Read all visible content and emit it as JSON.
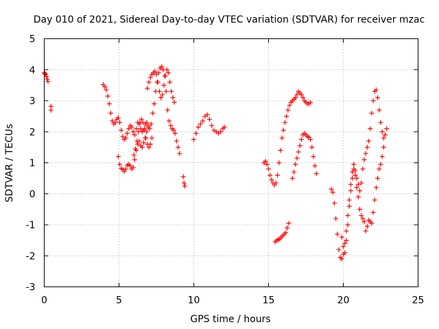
{
  "chart_data": {
    "type": "scatter",
    "title": "Day 010 of 2021, Sidereal Day-to-day VTEC variation (SDTVAR) for receiver mzac",
    "xlabel": "GPS time / hours",
    "ylabel": "SDTVAR / TECUs",
    "xlim": [
      0,
      25
    ],
    "ylim": [
      -3,
      5
    ],
    "xticks": [
      0,
      5,
      10,
      15,
      20,
      25
    ],
    "xtick_labels": [
      "0",
      "5",
      "10",
      "15",
      "20",
      "25"
    ],
    "yticks": [
      -3,
      -2,
      -1,
      0,
      1,
      2,
      3,
      4,
      5
    ],
    "ytick_labels": [
      "-3",
      "-2",
      "-1",
      "0",
      "1",
      "2",
      "3",
      "4",
      "5"
    ],
    "grid": true,
    "marker": "plus",
    "color": "#ff0000",
    "series": [
      {
        "x": [
          0.0,
          0.05,
          0.1,
          0.15,
          0.2,
          0.25
        ],
        "y": [
          3.9,
          3.88,
          3.85,
          3.78,
          3.7,
          3.62
        ]
      },
      {
        "x": [
          0.45,
          0.45
        ],
        "y": [
          2.82,
          2.7
        ]
      },
      {
        "x": [
          3.95,
          4.05,
          4.15,
          4.25,
          4.35,
          4.45,
          4.55,
          4.65,
          4.75,
          4.85,
          4.95,
          5.05,
          5.15,
          5.25,
          5.35,
          5.45,
          5.55,
          5.65,
          5.75,
          5.85,
          5.95,
          6.05,
          6.15,
          6.25,
          6.35,
          6.45,
          6.55,
          6.65,
          6.75,
          6.85,
          6.95,
          7.05,
          7.15,
          7.25,
          7.35,
          7.45,
          7.55,
          7.65,
          7.75,
          7.85,
          7.95,
          8.05,
          8.15,
          8.25,
          8.35,
          8.45,
          8.55,
          8.65,
          8.75,
          8.85,
          8.95,
          9.05
        ],
        "y": [
          3.52,
          3.45,
          3.35,
          3.15,
          2.9,
          2.6,
          2.35,
          2.25,
          2.3,
          2.4,
          2.45,
          2.3,
          2.05,
          1.85,
          1.75,
          1.8,
          1.95,
          2.1,
          2.2,
          2.15,
          2.0,
          1.9,
          2.1,
          2.3,
          2.25,
          2.1,
          2.0,
          2.05,
          2.25,
          2.3,
          2.15,
          2.1,
          2.25,
          2.6,
          2.9,
          3.3,
          3.6,
          3.9,
          4.05,
          4.1,
          4.0,
          3.8,
          3.3,
          2.7,
          2.35,
          2.2,
          2.1,
          2.05,
          1.95,
          1.7,
          1.5,
          1.3
        ]
      },
      {
        "x": [
          4.95,
          5.05,
          5.15,
          5.25,
          5.35,
          5.45,
          5.55,
          5.65,
          5.75,
          5.85,
          5.95,
          6.05,
          6.15,
          6.25,
          6.35,
          6.45,
          6.55,
          6.65,
          6.75,
          6.85,
          6.95
        ],
        "y": [
          1.2,
          0.95,
          0.82,
          0.78,
          0.72,
          0.8,
          0.92,
          0.95,
          0.9,
          0.8,
          0.85,
          1.1,
          1.4,
          1.6,
          1.7,
          1.55,
          1.5,
          1.65,
          1.8,
          2.0,
          2.2
        ]
      },
      {
        "x": [
          6.0,
          6.1,
          6.2,
          6.3,
          6.4,
          6.5,
          6.6,
          6.7,
          6.8,
          6.9,
          7.0,
          7.1,
          7.2
        ],
        "y": [
          1.25,
          1.45,
          1.7,
          2.0,
          2.3,
          2.4,
          2.3,
          2.1,
          1.8,
          1.6,
          1.5,
          1.6,
          1.8
        ]
      },
      {
        "x": [
          6.9,
          7.0,
          7.1,
          7.2,
          7.3,
          7.4,
          7.5,
          7.6,
          7.7,
          7.8,
          7.9,
          8.0,
          8.1,
          8.2,
          8.3,
          8.4,
          8.5,
          8.6,
          8.7
        ],
        "y": [
          3.4,
          3.6,
          3.75,
          3.85,
          3.9,
          3.95,
          3.85,
          3.6,
          3.3,
          3.1,
          3.2,
          3.5,
          3.8,
          4.0,
          3.9,
          3.6,
          3.3,
          3.1,
          2.95
        ]
      },
      {
        "x": [
          9.3,
          9.35,
          9.4
        ],
        "y": [
          0.55,
          0.35,
          0.25
        ]
      },
      {
        "x": [
          10.0,
          10.15,
          10.3,
          10.45,
          10.6,
          10.75,
          10.9,
          11.05,
          11.2,
          11.35,
          11.5,
          11.65,
          11.8,
          11.95,
          12.05
        ],
        "y": [
          1.75,
          1.95,
          2.15,
          2.25,
          2.35,
          2.5,
          2.55,
          2.4,
          2.2,
          2.05,
          2.0,
          1.95,
          2.0,
          2.1,
          2.15
        ]
      },
      {
        "x": [
          14.7,
          14.8,
          14.9,
          15.0,
          15.1,
          15.2,
          15.3,
          15.4,
          15.5,
          15.6,
          15.7,
          15.8,
          15.9,
          16.0,
          16.1,
          16.2,
          16.3,
          16.4,
          16.5,
          16.6,
          16.7,
          16.8,
          16.9,
          17.0,
          17.1,
          17.2,
          17.3,
          17.4,
          17.5,
          17.6,
          17.7,
          17.8
        ],
        "y": [
          1.0,
          1.05,
          0.95,
          0.8,
          0.6,
          0.45,
          0.35,
          0.28,
          0.35,
          0.6,
          1.0,
          1.4,
          1.8,
          2.05,
          2.3,
          2.5,
          2.7,
          2.85,
          2.95,
          3.0,
          3.05,
          3.1,
          3.2,
          3.3,
          3.25,
          3.2,
          3.1,
          3.0,
          2.95,
          2.9,
          2.9,
          2.95
        ]
      },
      {
        "x": [
          15.45,
          15.55,
          15.65,
          15.75,
          15.85,
          15.95,
          16.05,
          16.15,
          16.25,
          16.35
        ],
        "y": [
          -1.55,
          -1.5,
          -1.48,
          -1.45,
          -1.4,
          -1.35,
          -1.3,
          -1.25,
          -1.1,
          -0.95
        ]
      },
      {
        "x": [
          16.6,
          16.7,
          16.8,
          16.9,
          17.0,
          17.1,
          17.2,
          17.3,
          17.4,
          17.5,
          17.6,
          17.7,
          17.8,
          17.9,
          18.0,
          18.1,
          18.2
        ],
        "y": [
          0.5,
          0.7,
          0.95,
          1.15,
          1.35,
          1.55,
          1.75,
          1.9,
          1.95,
          1.9,
          1.85,
          1.82,
          1.75,
          1.5,
          1.2,
          0.9,
          0.65
        ]
      },
      {
        "x": [
          19.2,
          19.3,
          19.4,
          19.5,
          19.6,
          19.7,
          19.8,
          19.9,
          20.0,
          20.1,
          20.2,
          20.3,
          20.4,
          20.5,
          20.6,
          20.7,
          20.8,
          20.9,
          21.0,
          21.1,
          21.2,
          21.3,
          21.4,
          21.5,
          21.6,
          21.7,
          21.8,
          21.9,
          22.0,
          22.1,
          22.2,
          22.3,
          22.4,
          22.5,
          22.6,
          22.7,
          22.8,
          22.9
        ],
        "y": [
          0.15,
          0.05,
          -0.3,
          -0.8,
          -1.3,
          -1.8,
          -2.05,
          -2.1,
          -1.95,
          -1.6,
          -1.2,
          -0.7,
          -0.2,
          0.3,
          0.7,
          0.95,
          0.75,
          0.5,
          0.3,
          0.1,
          0.35,
          0.8,
          1.1,
          1.3,
          1.5,
          1.7,
          2.1,
          2.6,
          3.0,
          3.3,
          3.35,
          3.1,
          2.7,
          2.3,
          2.0,
          1.8,
          1.9,
          2.1
        ]
      },
      {
        "x": [
          19.9,
          20.0,
          20.1,
          20.2,
          20.3,
          20.4,
          20.5,
          20.6,
          20.7,
          20.8,
          20.9,
          21.0,
          21.1,
          21.2,
          21.3,
          21.4,
          21.5,
          21.6,
          21.7,
          21.8,
          21.9,
          22.0,
          22.1,
          22.2,
          22.3,
          22.4,
          22.5,
          22.6,
          22.7
        ],
        "y": [
          -1.4,
          -1.7,
          -1.9,
          -1.5,
          -1.0,
          -0.4,
          0.1,
          0.5,
          0.8,
          0.6,
          0.2,
          -0.1,
          -0.5,
          -0.7,
          -0.8,
          -0.9,
          -1.2,
          -1.05,
          -0.85,
          -0.9,
          -0.95,
          -0.6,
          -0.2,
          0.2,
          0.5,
          0.8,
          0.95,
          1.2,
          1.5
        ]
      }
    ]
  }
}
